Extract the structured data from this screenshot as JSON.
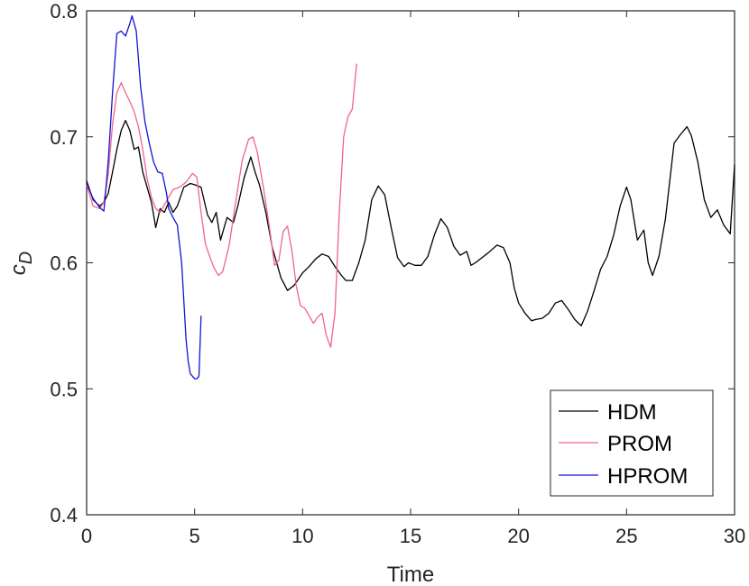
{
  "chart_data": {
    "type": "line",
    "title": "",
    "xlabel": "Time",
    "ylabel": "c_D",
    "ylabel_main": "c",
    "ylabel_sub": "D",
    "xlim": [
      0,
      30
    ],
    "ylim": [
      0.4,
      0.8
    ],
    "xticks": [
      0,
      5,
      10,
      15,
      20,
      25,
      30
    ],
    "yticks": [
      0.4,
      0.5,
      0.6,
      0.7,
      0.8
    ],
    "xtick_labels": [
      "0",
      "5",
      "10",
      "15",
      "20",
      "25",
      "30"
    ],
    "ytick_labels": [
      "0.4",
      "0.5",
      "0.6",
      "0.7",
      "0.8"
    ],
    "grid": false,
    "legend_position": "bottom-right",
    "series": [
      {
        "name": "HDM",
        "color": "#000000",
        "x": [
          0,
          0.3,
          0.6,
          0.8,
          1.0,
          1.2,
          1.4,
          1.6,
          1.8,
          2.0,
          2.2,
          2.4,
          2.6,
          2.8,
          3.0,
          3.2,
          3.4,
          3.6,
          3.8,
          4.0,
          4.2,
          4.5,
          4.8,
          5.0,
          5.3,
          5.6,
          5.8,
          6.0,
          6.2,
          6.5,
          6.8,
          7.0,
          7.3,
          7.6,
          7.8,
          8.0,
          8.3,
          8.6,
          9.0,
          9.3,
          9.6,
          10.0,
          10.3,
          10.6,
          10.9,
          11.2,
          11.5,
          11.8,
          12.0,
          12.3,
          12.6,
          12.9,
          13.2,
          13.5,
          13.8,
          14.1,
          14.4,
          14.7,
          14.9,
          15.2,
          15.5,
          15.8,
          16.1,
          16.4,
          16.7,
          17.0,
          17.3,
          17.6,
          17.8,
          18.0,
          18.3,
          18.6,
          19.0,
          19.3,
          19.6,
          19.8,
          20.0,
          20.3,
          20.6,
          20.8,
          21.1,
          21.4,
          21.7,
          22.0,
          22.3,
          22.6,
          22.9,
          23.2,
          23.5,
          23.8,
          24.1,
          24.4,
          24.7,
          25.0,
          25.2,
          25.5,
          25.8,
          26.0,
          26.2,
          26.5,
          26.8,
          27.0,
          27.2,
          27.5,
          27.8,
          28.0,
          28.3,
          28.6,
          28.9,
          29.2,
          29.5,
          29.8,
          30.0
        ],
        "values": [
          0.665,
          0.65,
          0.645,
          0.648,
          0.655,
          0.672,
          0.69,
          0.705,
          0.713,
          0.705,
          0.69,
          0.692,
          0.672,
          0.66,
          0.648,
          0.628,
          0.643,
          0.64,
          0.648,
          0.64,
          0.645,
          0.66,
          0.663,
          0.662,
          0.66,
          0.638,
          0.632,
          0.64,
          0.618,
          0.636,
          0.632,
          0.645,
          0.668,
          0.684,
          0.672,
          0.662,
          0.64,
          0.612,
          0.588,
          0.578,
          0.582,
          0.592,
          0.597,
          0.603,
          0.607,
          0.605,
          0.597,
          0.59,
          0.586,
          0.586,
          0.6,
          0.618,
          0.65,
          0.661,
          0.654,
          0.628,
          0.604,
          0.597,
          0.6,
          0.598,
          0.598,
          0.605,
          0.622,
          0.635,
          0.628,
          0.613,
          0.606,
          0.609,
          0.598,
          0.6,
          0.604,
          0.608,
          0.614,
          0.612,
          0.6,
          0.58,
          0.568,
          0.56,
          0.554,
          0.555,
          0.556,
          0.56,
          0.568,
          0.57,
          0.563,
          0.555,
          0.55,
          0.562,
          0.578,
          0.595,
          0.605,
          0.622,
          0.645,
          0.66,
          0.65,
          0.618,
          0.626,
          0.6,
          0.59,
          0.605,
          0.635,
          0.665,
          0.695,
          0.702,
          0.708,
          0.701,
          0.68,
          0.65,
          0.636,
          0.642,
          0.63,
          0.623,
          0.678
        ]
      },
      {
        "name": "PROM",
        "color": "#f0648c",
        "x": [
          0,
          0.3,
          0.6,
          0.8,
          1.0,
          1.2,
          1.4,
          1.6,
          1.8,
          2.0,
          2.2,
          2.4,
          2.6,
          2.8,
          3.0,
          3.2,
          3.4,
          3.6,
          3.8,
          4.0,
          4.3,
          4.6,
          4.9,
          5.1,
          5.3,
          5.5,
          5.7,
          5.9,
          6.1,
          6.3,
          6.6,
          6.9,
          7.2,
          7.5,
          7.7,
          7.9,
          8.2,
          8.5,
          8.7,
          8.9,
          9.1,
          9.3,
          9.5,
          9.7,
          9.9,
          10.1,
          10.3,
          10.5,
          10.7,
          10.9,
          11.1,
          11.3,
          11.5,
          11.7,
          11.9,
          12.1,
          12.3,
          12.5
        ],
        "values": [
          0.662,
          0.645,
          0.643,
          0.648,
          0.67,
          0.71,
          0.735,
          0.743,
          0.735,
          0.728,
          0.72,
          0.708,
          0.69,
          0.667,
          0.652,
          0.643,
          0.64,
          0.646,
          0.652,
          0.658,
          0.66,
          0.664,
          0.671,
          0.668,
          0.64,
          0.615,
          0.605,
          0.596,
          0.59,
          0.593,
          0.614,
          0.648,
          0.681,
          0.698,
          0.7,
          0.688,
          0.658,
          0.624,
          0.598,
          0.602,
          0.625,
          0.629,
          0.61,
          0.582,
          0.566,
          0.564,
          0.558,
          0.552,
          0.557,
          0.56,
          0.542,
          0.533,
          0.56,
          0.64,
          0.7,
          0.716,
          0.722,
          0.758
        ]
      },
      {
        "name": "HPROM",
        "color": "#1414d2",
        "x": [
          0,
          0.3,
          0.6,
          0.8,
          1.0,
          1.2,
          1.4,
          1.6,
          1.8,
          2.0,
          2.1,
          2.3,
          2.5,
          2.7,
          2.9,
          3.1,
          3.3,
          3.5,
          3.7,
          3.8,
          4.0,
          4.2,
          4.4,
          4.5,
          4.6,
          4.7,
          4.8,
          4.9,
          5.0,
          5.1,
          5.2,
          5.3
        ],
        "values": [
          0.663,
          0.651,
          0.644,
          0.641,
          0.68,
          0.735,
          0.782,
          0.784,
          0.78,
          0.79,
          0.796,
          0.784,
          0.74,
          0.712,
          0.695,
          0.68,
          0.672,
          0.671,
          0.655,
          0.643,
          0.636,
          0.63,
          0.6,
          0.57,
          0.54,
          0.522,
          0.512,
          0.51,
          0.508,
          0.508,
          0.51,
          0.558
        ]
      }
    ]
  }
}
